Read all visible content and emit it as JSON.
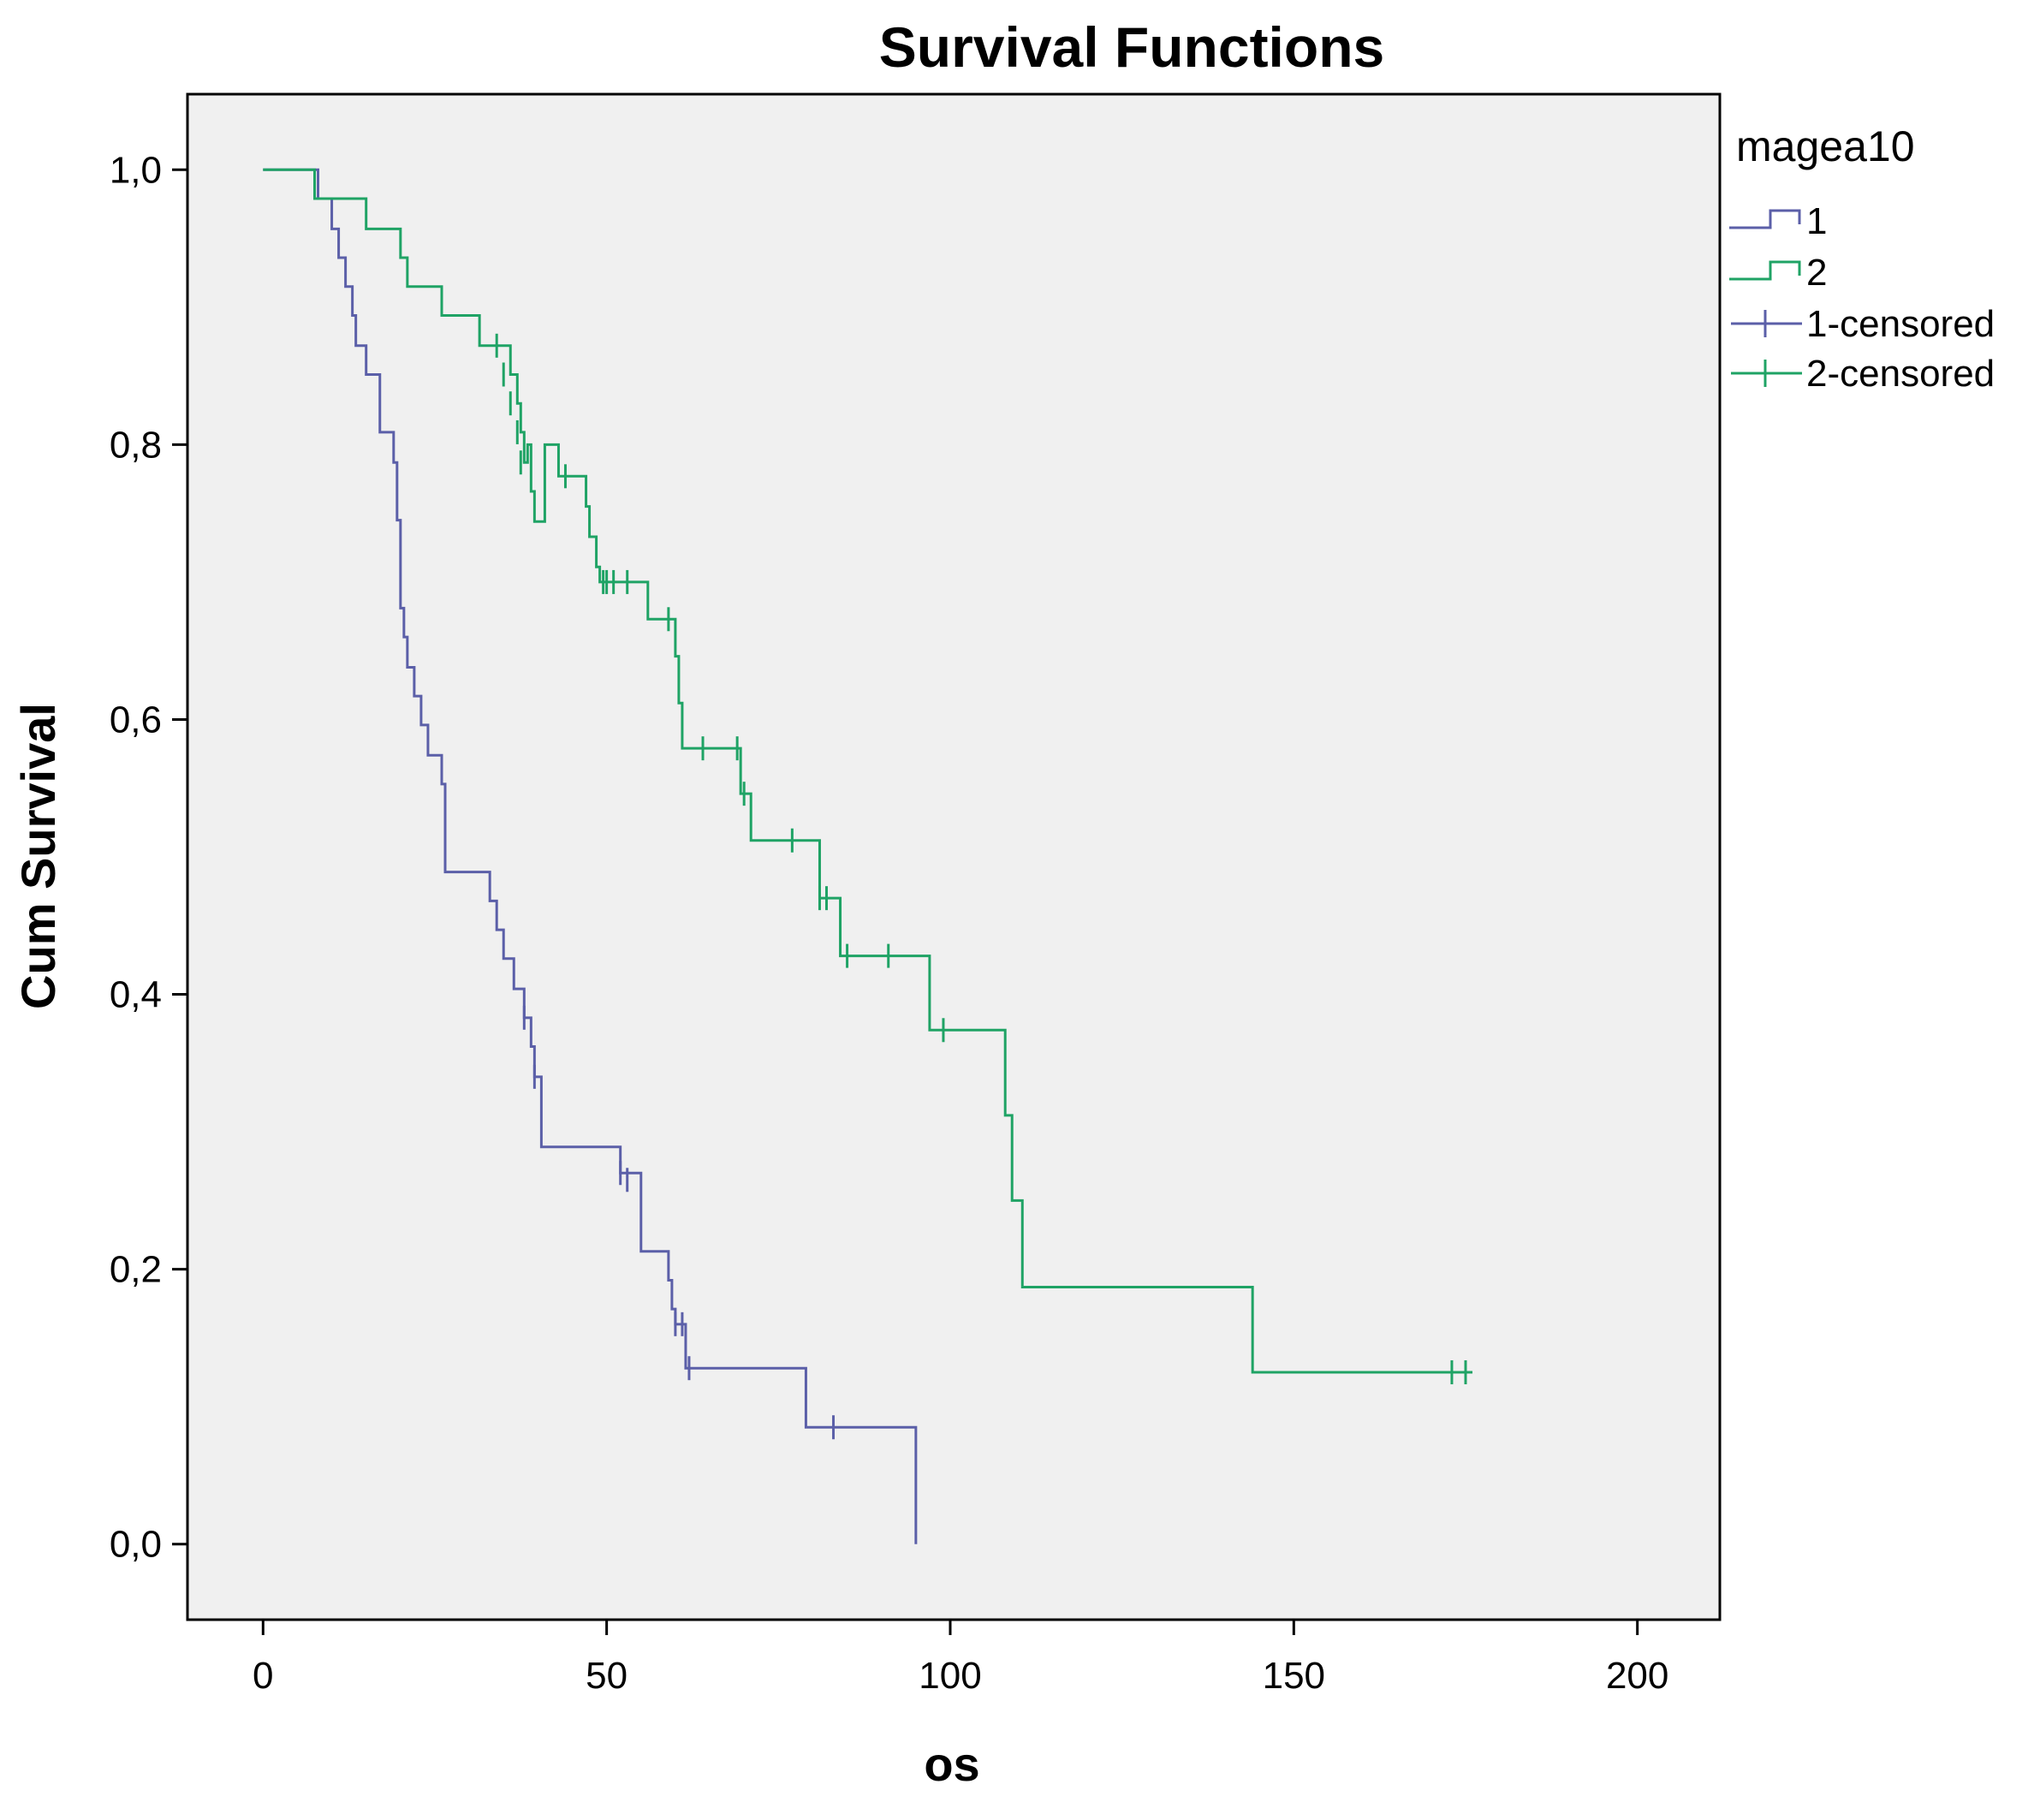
{
  "chart_data": {
    "type": "line",
    "step": true,
    "title": "Survival Functions",
    "xlabel": "os",
    "ylabel": "Cum Survival",
    "xlim": [
      -11,
      212
    ],
    "ylim": [
      -0.055,
      1.055
    ],
    "xticks": [
      0,
      50,
      100,
      150,
      200
    ],
    "xtick_labels": [
      "0",
      "50",
      "100",
      "150",
      "200"
    ],
    "yticks": [
      0.0,
      0.2,
      0.4,
      0.6,
      0.8,
      1.0
    ],
    "ytick_labels": [
      "0,0",
      "0,2",
      "0,4",
      "0,6",
      "0,8",
      "1,0"
    ],
    "grid": false,
    "background": "#f0f0f0",
    "legend": {
      "title": "magea10",
      "placement": "right",
      "entries": [
        "1",
        "2",
        "1-censored",
        "2-censored"
      ]
    },
    "series": [
      {
        "name": "1",
        "color": "#5b5fa8",
        "steps": [
          [
            0,
            1.0
          ],
          [
            8,
            0.979
          ],
          [
            10,
            0.957
          ],
          [
            11,
            0.936
          ],
          [
            12,
            0.915
          ],
          [
            13,
            0.894
          ],
          [
            13.5,
            0.872
          ],
          [
            15,
            0.851
          ],
          [
            17,
            0.809
          ],
          [
            19,
            0.787
          ],
          [
            19.5,
            0.745
          ],
          [
            20,
            0.681
          ],
          [
            20.5,
            0.66
          ],
          [
            21,
            0.638
          ],
          [
            22,
            0.617
          ],
          [
            23,
            0.596
          ],
          [
            24,
            0.574
          ],
          [
            26,
            0.553
          ],
          [
            26.5,
            0.489
          ],
          [
            33,
            0.468
          ],
          [
            34,
            0.447
          ],
          [
            35,
            0.426
          ],
          [
            36.5,
            0.404
          ],
          [
            38,
            0.383
          ],
          [
            39,
            0.362
          ],
          [
            39.5,
            0.34
          ],
          [
            40.5,
            0.289
          ],
          [
            52,
            0.27
          ],
          [
            55,
            0.213
          ],
          [
            59,
            0.192
          ],
          [
            59.5,
            0.171
          ],
          [
            60,
            0.16
          ],
          [
            61.5,
            0.128
          ],
          [
            79,
            0.085
          ],
          [
            95,
            0.0
          ]
        ],
        "end_x": 95,
        "censored": [
          [
            38,
            0.383
          ],
          [
            39.5,
            0.34
          ],
          [
            52,
            0.27
          ],
          [
            53,
            0.265
          ],
          [
            60,
            0.16
          ],
          [
            61,
            0.16
          ],
          [
            62,
            0.128
          ],
          [
            83,
            0.085
          ]
        ]
      },
      {
        "name": "2",
        "color": "#1fa365",
        "steps": [
          [
            0,
            1.0
          ],
          [
            7.5,
            0.979
          ],
          [
            15,
            0.957
          ],
          [
            20,
            0.936
          ],
          [
            21,
            0.915
          ],
          [
            26,
            0.894
          ],
          [
            31.5,
            0.872
          ],
          [
            36,
            0.851
          ],
          [
            37,
            0.83
          ],
          [
            37.5,
            0.809
          ],
          [
            38,
            0.787
          ],
          [
            39,
            0.766
          ],
          [
            39.5,
            0.744
          ],
          [
            38.5,
            0.8
          ],
          [
            41,
            0.8
          ],
          [
            43,
            0.777
          ],
          [
            47,
            0.755
          ],
          [
            47.5,
            0.733
          ],
          [
            48.5,
            0.711
          ],
          [
            49,
            0.7
          ],
          [
            56,
            0.673
          ],
          [
            60,
            0.646
          ],
          [
            60.5,
            0.612
          ],
          [
            61,
            0.579
          ],
          [
            69.5,
            0.546
          ],
          [
            71,
            0.512
          ],
          [
            81,
            0.47
          ],
          [
            84,
            0.428
          ],
          [
            97,
            0.374
          ],
          [
            108,
            0.312
          ],
          [
            109,
            0.25
          ],
          [
            110.5,
            0.187
          ],
          [
            144,
            0.125
          ]
        ],
        "end_x": 176,
        "censored": [
          [
            34,
            0.872
          ],
          [
            35,
            0.851
          ],
          [
            36,
            0.83
          ],
          [
            37,
            0.809
          ],
          [
            37.5,
            0.787
          ],
          [
            44,
            0.777
          ],
          [
            49.5,
            0.7
          ],
          [
            50,
            0.7
          ],
          [
            51,
            0.7
          ],
          [
            53,
            0.7
          ],
          [
            59,
            0.673
          ],
          [
            64,
            0.579
          ],
          [
            69,
            0.579
          ],
          [
            70,
            0.546
          ],
          [
            77,
            0.512
          ],
          [
            81,
            0.47
          ],
          [
            82,
            0.47
          ],
          [
            85,
            0.428
          ],
          [
            91,
            0.428
          ],
          [
            99,
            0.374
          ],
          [
            173,
            0.125
          ],
          [
            175,
            0.125
          ]
        ]
      }
    ]
  }
}
